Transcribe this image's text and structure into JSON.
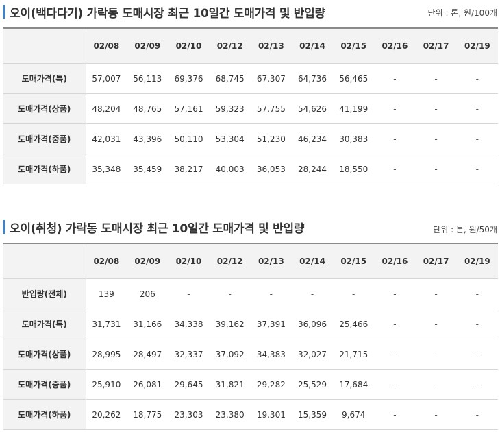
{
  "section1": {
    "title": "오이(백다다기) 가락동 도매시장 최근 10일간 도매가격 및 반입량",
    "unit": "단위 : 톤, 원/100개",
    "dates": [
      "02/08",
      "02/09",
      "02/10",
      "02/12",
      "02/13",
      "02/14",
      "02/15",
      "02/16",
      "02/17",
      "02/19"
    ],
    "rows": [
      {
        "label": "도매가격(특)",
        "values": [
          "57,007",
          "56,113",
          "69,376",
          "68,745",
          "67,307",
          "64,736",
          "56,465",
          "-",
          "-",
          "-"
        ]
      },
      {
        "label": "도매가격(상품)",
        "values": [
          "48,204",
          "48,765",
          "57,161",
          "59,323",
          "57,755",
          "54,626",
          "41,199",
          "-",
          "-",
          "-"
        ]
      },
      {
        "label": "도매가격(중품)",
        "values": [
          "42,031",
          "43,396",
          "50,110",
          "53,304",
          "51,230",
          "46,234",
          "30,383",
          "-",
          "-",
          "-"
        ]
      },
      {
        "label": "도매가격(하품)",
        "values": [
          "35,348",
          "35,459",
          "38,217",
          "40,003",
          "36,053",
          "28,244",
          "18,550",
          "-",
          "-",
          "-"
        ]
      }
    ]
  },
  "section2": {
    "title": "오이(취청) 가락동 도매시장 최근 10일간 도매가격 및 반입량",
    "unit": "단위 : 톤, 원/50개",
    "dates": [
      "02/08",
      "02/09",
      "02/10",
      "02/12",
      "02/13",
      "02/14",
      "02/15",
      "02/16",
      "02/17",
      "02/19"
    ],
    "rows": [
      {
        "label": "반입량(전체)",
        "values": [
          "139",
          "206",
          "-",
          "-",
          "-",
          "-",
          "-",
          "-",
          "-",
          "-"
        ]
      },
      {
        "label": "도매가격(특)",
        "values": [
          "31,731",
          "31,166",
          "34,338",
          "39,162",
          "37,391",
          "36,096",
          "25,466",
          "-",
          "-",
          "-"
        ]
      },
      {
        "label": "도매가격(상품)",
        "values": [
          "28,995",
          "28,497",
          "32,337",
          "37,092",
          "34,383",
          "32,027",
          "21,715",
          "-",
          "-",
          "-"
        ]
      },
      {
        "label": "도매가격(중품)",
        "values": [
          "25,910",
          "26,081",
          "29,645",
          "31,821",
          "29,282",
          "25,529",
          "17,684",
          "-",
          "-",
          "-"
        ]
      },
      {
        "label": "도매가격(하품)",
        "values": [
          "20,262",
          "18,775",
          "23,303",
          "23,380",
          "19,301",
          "15,359",
          "9,674",
          "-",
          "-",
          "-"
        ]
      }
    ]
  }
}
